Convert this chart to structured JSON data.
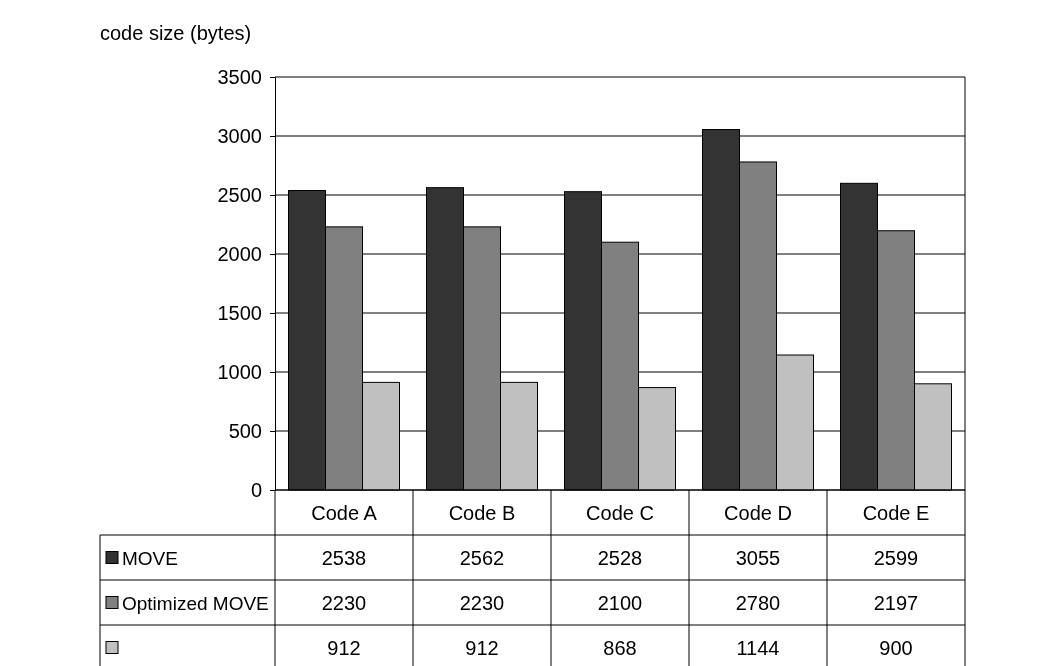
{
  "chart_data": {
    "type": "bar",
    "ylabel": "code size (bytes)",
    "categories": [
      "Code A",
      "Code B",
      "Code C",
      "Code D",
      "Code E"
    ],
    "series": [
      {
        "name": "MOVE",
        "color": "#333333",
        "values": [
          2538,
          2562,
          2528,
          3055,
          2599
        ]
      },
      {
        "name": "Optimized MOVE",
        "color": "#808080",
        "values": [
          2230,
          2230,
          2100,
          2780,
          2197
        ]
      },
      {
        "color": "#c0c0c0",
        "values": [
          912,
          912,
          868,
          1144,
          900
        ]
      }
    ],
    "ylim": [
      0,
      3500
    ],
    "yticks": [
      0,
      500,
      1000,
      1500,
      2000,
      2500,
      3000,
      3500
    ],
    "grid": "y",
    "legend": "bottom left",
    "data_labels": true
  }
}
